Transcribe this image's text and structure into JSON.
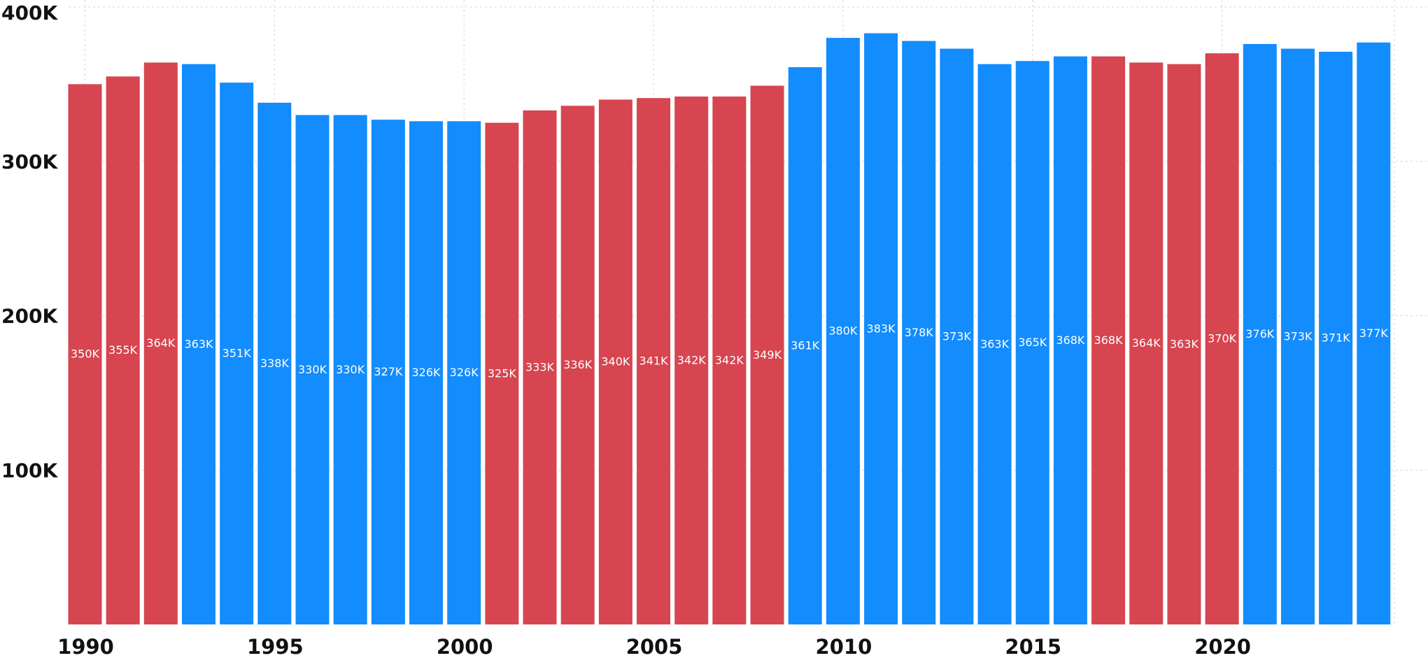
{
  "chart_data": {
    "type": "bar",
    "title": "",
    "xlabel": "",
    "ylabel": "",
    "ylim": [
      0,
      400000
    ],
    "grid": true,
    "legend": "none",
    "y_ticks": [
      {
        "value": 100000,
        "label": "100K"
      },
      {
        "value": 200000,
        "label": "200K"
      },
      {
        "value": 300000,
        "label": "300K"
      },
      {
        "value": 400000,
        "label": "400K"
      }
    ],
    "x_ticks": [
      {
        "value": 1990,
        "label": "1990"
      },
      {
        "value": 1995,
        "label": "1995"
      },
      {
        "value": 2000,
        "label": "2000"
      },
      {
        "value": 2005,
        "label": "2005"
      },
      {
        "value": 2010,
        "label": "2010"
      },
      {
        "value": 2015,
        "label": "2015"
      },
      {
        "value": 2020,
        "label": "2020"
      }
    ],
    "colors": {
      "red": "#d64550",
      "blue": "#138cfd"
    },
    "bars": [
      {
        "year": 1990,
        "value": 350000,
        "label": "350K",
        "color": "red"
      },
      {
        "year": 1991,
        "value": 355000,
        "label": "355K",
        "color": "red"
      },
      {
        "year": 1992,
        "value": 364000,
        "label": "364K",
        "color": "red"
      },
      {
        "year": 1993,
        "value": 363000,
        "label": "363K",
        "color": "blue"
      },
      {
        "year": 1994,
        "value": 351000,
        "label": "351K",
        "color": "blue"
      },
      {
        "year": 1995,
        "value": 338000,
        "label": "338K",
        "color": "blue"
      },
      {
        "year": 1996,
        "value": 330000,
        "label": "330K",
        "color": "blue"
      },
      {
        "year": 1997,
        "value": 330000,
        "label": "330K",
        "color": "blue"
      },
      {
        "year": 1998,
        "value": 327000,
        "label": "327K",
        "color": "blue"
      },
      {
        "year": 1999,
        "value": 326000,
        "label": "326K",
        "color": "blue"
      },
      {
        "year": 2000,
        "value": 326000,
        "label": "326K",
        "color": "blue"
      },
      {
        "year": 2001,
        "value": 325000,
        "label": "325K",
        "color": "red"
      },
      {
        "year": 2002,
        "value": 333000,
        "label": "333K",
        "color": "red"
      },
      {
        "year": 2003,
        "value": 336000,
        "label": "336K",
        "color": "red"
      },
      {
        "year": 2004,
        "value": 340000,
        "label": "340K",
        "color": "red"
      },
      {
        "year": 2005,
        "value": 341000,
        "label": "341K",
        "color": "red"
      },
      {
        "year": 2006,
        "value": 342000,
        "label": "342K",
        "color": "red"
      },
      {
        "year": 2007,
        "value": 342000,
        "label": "342K",
        "color": "red"
      },
      {
        "year": 2008,
        "value": 349000,
        "label": "349K",
        "color": "red"
      },
      {
        "year": 2009,
        "value": 361000,
        "label": "361K",
        "color": "blue"
      },
      {
        "year": 2010,
        "value": 380000,
        "label": "380K",
        "color": "blue"
      },
      {
        "year": 2011,
        "value": 383000,
        "label": "383K",
        "color": "blue"
      },
      {
        "year": 2012,
        "value": 378000,
        "label": "378K",
        "color": "blue"
      },
      {
        "year": 2013,
        "value": 373000,
        "label": "373K",
        "color": "blue"
      },
      {
        "year": 2014,
        "value": 363000,
        "label": "363K",
        "color": "blue"
      },
      {
        "year": 2015,
        "value": 365000,
        "label": "365K",
        "color": "blue"
      },
      {
        "year": 2016,
        "value": 368000,
        "label": "368K",
        "color": "blue"
      },
      {
        "year": 2017,
        "value": 368000,
        "label": "368K",
        "color": "red"
      },
      {
        "year": 2018,
        "value": 364000,
        "label": "364K",
        "color": "red"
      },
      {
        "year": 2019,
        "value": 363000,
        "label": "363K",
        "color": "red"
      },
      {
        "year": 2020,
        "value": 370000,
        "label": "370K",
        "color": "red"
      },
      {
        "year": 2021,
        "value": 376000,
        "label": "376K",
        "color": "blue"
      },
      {
        "year": 2022,
        "value": 373000,
        "label": "373K",
        "color": "blue"
      },
      {
        "year": 2023,
        "value": 371000,
        "label": "371K",
        "color": "blue"
      },
      {
        "year": 2024,
        "value": 377000,
        "label": "377K",
        "color": "blue"
      }
    ]
  }
}
